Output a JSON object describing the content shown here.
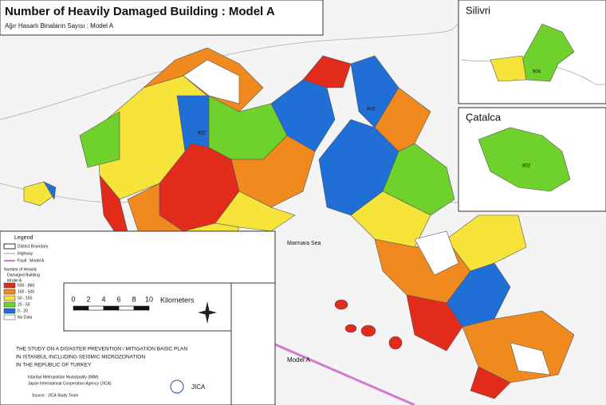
{
  "header": {
    "title": "Number of Heavily Damaged Building : Model A",
    "subtitle": "Ağır Hasarlı Binaların Sayısı : Model A"
  },
  "insets": {
    "silivri": {
      "label": "Silivri",
      "code": "904"
    },
    "catalca": {
      "label": "Çatalca",
      "code": "902"
    }
  },
  "map": {
    "sea_label": "Marmara Sea",
    "fault_label": "Model A",
    "codes": [
      "932",
      "903"
    ]
  },
  "legend": {
    "title": "Legend",
    "items": [
      "District Boundary",
      "Highway",
      "Fault : Model A"
    ],
    "class_title": [
      "Number of Heavily",
      "Damaged Building",
      "Model A"
    ],
    "classes": [
      "500 - 860",
      "150 - 500",
      "50 - 150",
      "20 - 50",
      "0 - 20",
      "No Data"
    ]
  },
  "scale": {
    "ticks": [
      "0",
      "2",
      "4",
      "6",
      "8",
      "10"
    ],
    "unit": "Kilometers"
  },
  "study": {
    "lines": [
      "THE STUDY ON A DISASTER PREVENTION / MITIGATION BASIC PLAN",
      "IN ISTANBUL INCLUDING SEISMIC MICROZONATION",
      "IN THE REPUBLIC OF TURKEY"
    ],
    "agencies": [
      "Istanbul Metropolitan Municipality (IMM)",
      "Japan International Cooperation Agency (JICA)"
    ],
    "source": "Source : JICA Study Team",
    "logo": "JICA"
  }
}
